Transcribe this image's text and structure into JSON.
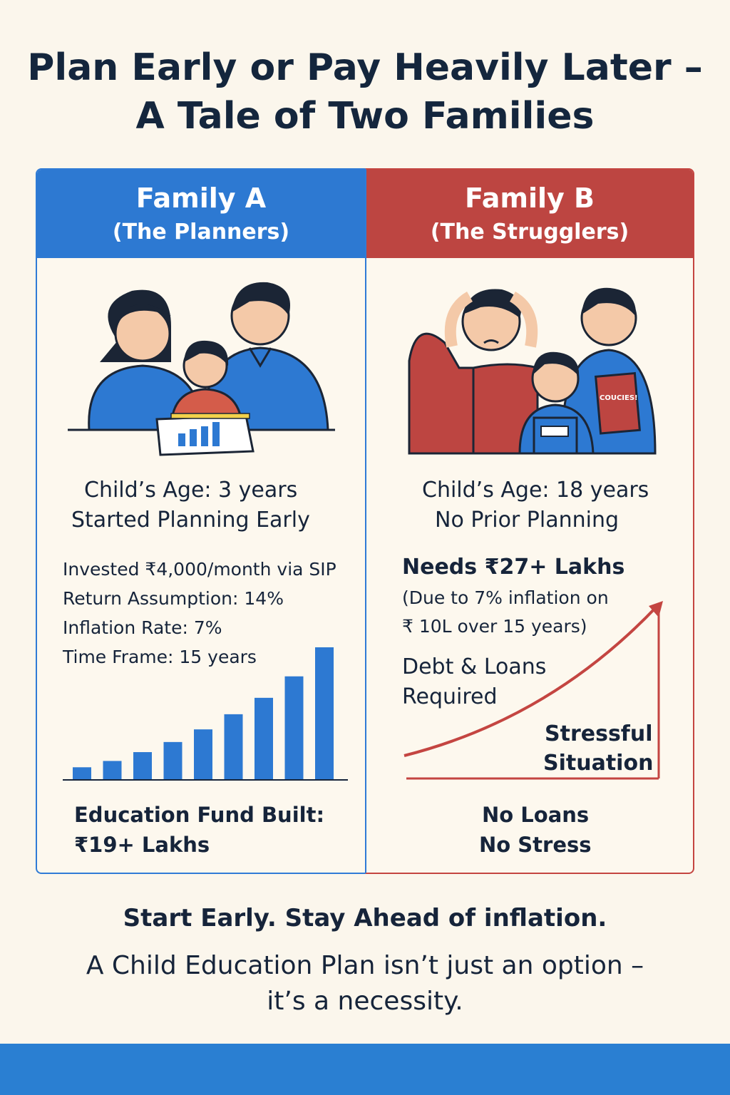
{
  "title": {
    "line1": "Plan Early or Pay Heavily Later –",
    "line2": "A Tale of Two Families"
  },
  "family_a": {
    "name": "Family A",
    "subtitle": "(The Planners)",
    "age": "Child’s Age: 3 years",
    "status": "Started Planning Early",
    "details": [
      "Invested ₹4,000/month via SIP",
      "Return Assumption: 14%",
      "Inflation Rate: 7%",
      "Time Frame: 15 years"
    ],
    "result_label": "Education Fund Built:",
    "result_value": "₹19+ Lakhs",
    "chart_values": [
      1,
      1.5,
      2.2,
      3,
      4,
      5.2,
      6.5,
      8.2,
      10.5
    ]
  },
  "family_b": {
    "name": "Family B",
    "subtitle": "(The Strugglers)",
    "age": "Child’s Age: 18 years",
    "status": "No Prior Planning",
    "needs": "Needs ₹27+ Lakhs",
    "needs_note_1": "(Due to 7% inflation on",
    "needs_note_2": "₹ 10L over 15 years)",
    "debt_1": "Debt & Loans",
    "debt_2": "Required",
    "stress_1": "Stressful",
    "stress_2": "Situation",
    "bottom_1": "No Loans",
    "bottom_2": "No Stress",
    "book_label": "COUCIES!"
  },
  "footer": {
    "line1": "Start Early. Stay Ahead of inflation.",
    "line2": "A Child Education Plan isn’t just an option –",
    "line3": "it’s a necessity."
  },
  "colors": {
    "blue": "#2d79d2",
    "red": "#bd4541",
    "dark": "#14263d"
  }
}
